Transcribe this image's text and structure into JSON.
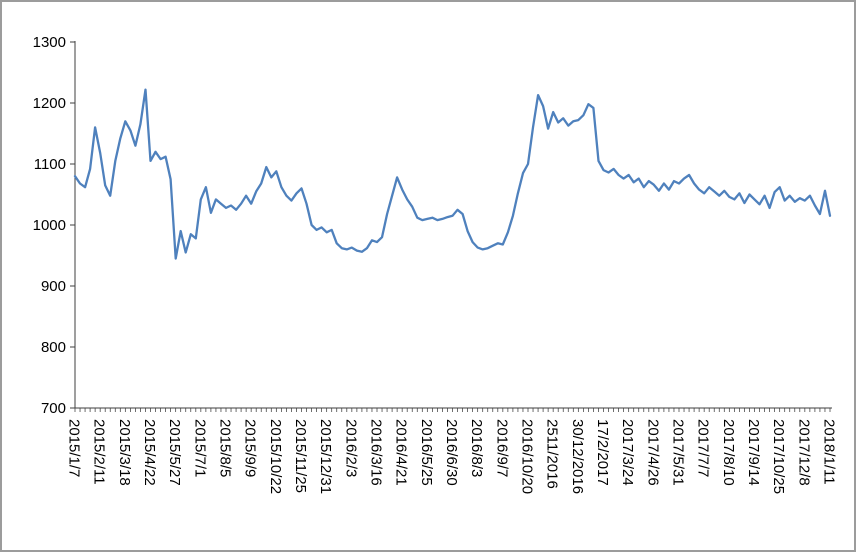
{
  "frame": {
    "background": "#ffffff",
    "border_color": "#9c9c9c"
  },
  "chart_data": {
    "type": "line",
    "title": "",
    "xlabel": "",
    "ylabel": "",
    "grid": false,
    "legend": "none",
    "ylim": [
      700,
      1300
    ],
    "y_ticks": [
      700,
      800,
      900,
      1000,
      1100,
      1200,
      1300
    ],
    "x_tick_every": 5,
    "x_tick_labels": [
      "2015/1/7",
      "2015/2/11",
      "2015/3/18",
      "2015/4/22",
      "2015/5/27",
      "2015/7/1",
      "2015/8/5",
      "2015/9/9",
      "2015/10/22",
      "2015/11/25",
      "2015/12/31",
      "2016/2/3",
      "2016/3/16",
      "2016/4/21",
      "2016/5/25",
      "2016/6/30",
      "2016/8/3",
      "2016/9/7",
      "2016/10/20",
      "2511/2016",
      "30/12/2016",
      "17/2/2017",
      "2017/3/24",
      "2017/4/26",
      "2017/5/31",
      "2017/7/7",
      "2017/8/10",
      "2017/9/14",
      "2017/10/25",
      "2017/12/8",
      "2018/1/11"
    ],
    "line_color": "#4F81BD",
    "axis_color": "#3f3f3f",
    "series": [
      {
        "name": "",
        "color": "#4F81BD",
        "values": [
          1080,
          1068,
          1062,
          1092,
          1160,
          1118,
          1065,
          1048,
          1105,
          1142,
          1170,
          1155,
          1130,
          1165,
          1222,
          1105,
          1120,
          1108,
          1112,
          1075,
          945,
          990,
          955,
          985,
          978,
          1042,
          1062,
          1020,
          1042,
          1035,
          1028,
          1032,
          1025,
          1035,
          1048,
          1035,
          1055,
          1068,
          1095,
          1078,
          1088,
          1062,
          1048,
          1040,
          1052,
          1060,
          1035,
          1000,
          992,
          996,
          988,
          992,
          970,
          962,
          960,
          963,
          958,
          956,
          962,
          975,
          972,
          980,
          1018,
          1048,
          1078,
          1058,
          1042,
          1030,
          1012,
          1008,
          1010,
          1012,
          1008,
          1010,
          1013,
          1015,
          1025,
          1018,
          990,
          972,
          963,
          960,
          962,
          966,
          970,
          968,
          988,
          1015,
          1052,
          1085,
          1100,
          1160,
          1213,
          1195,
          1158,
          1185,
          1168,
          1175,
          1163,
          1170,
          1172,
          1180,
          1198,
          1192,
          1105,
          1090,
          1086,
          1092,
          1082,
          1076,
          1082,
          1070,
          1076,
          1062,
          1072,
          1066,
          1056,
          1068,
          1058,
          1072,
          1068,
          1076,
          1082,
          1068,
          1058,
          1052,
          1062,
          1055,
          1048,
          1056,
          1046,
          1042,
          1052,
          1036,
          1050,
          1042,
          1034,
          1048,
          1028,
          1054,
          1062,
          1040,
          1048,
          1038,
          1044,
          1040,
          1048,
          1032,
          1018,
          1056,
          1015
        ]
      }
    ]
  }
}
